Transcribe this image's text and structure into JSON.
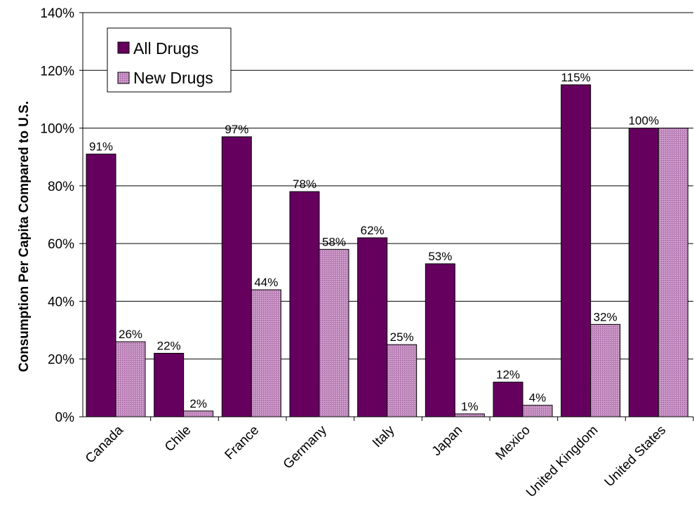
{
  "chart_data": {
    "type": "bar",
    "title": "",
    "xlabel": "",
    "ylabel": "Consumption Per Capita Compared to U.S.",
    "ylim": [
      0,
      140
    ],
    "ytick_step": 20,
    "ytick_suffix": "%",
    "grid": true,
    "legend_position": "top-left",
    "categories": [
      "Canada",
      "Chile",
      "France",
      "Germany",
      "Italy",
      "Japan",
      "Mexico",
      "United Kingdom",
      "United States"
    ],
    "series": [
      {
        "name": "All Drugs",
        "color": "#66005f",
        "values": [
          91,
          22,
          97,
          78,
          62,
          53,
          12,
          115,
          100
        ],
        "labels": [
          "91%",
          "22%",
          "97%",
          "78%",
          "62%",
          "53%",
          "12%",
          "115%",
          "100%"
        ]
      },
      {
        "name": "New Drugs",
        "color": "#c48ac0",
        "values": [
          26,
          2,
          44,
          58,
          25,
          1,
          4,
          32,
          100
        ],
        "labels": [
          "26%",
          "2%",
          "44%",
          "58%",
          "25%",
          "1%",
          "4%",
          "32%",
          ""
        ]
      }
    ]
  }
}
